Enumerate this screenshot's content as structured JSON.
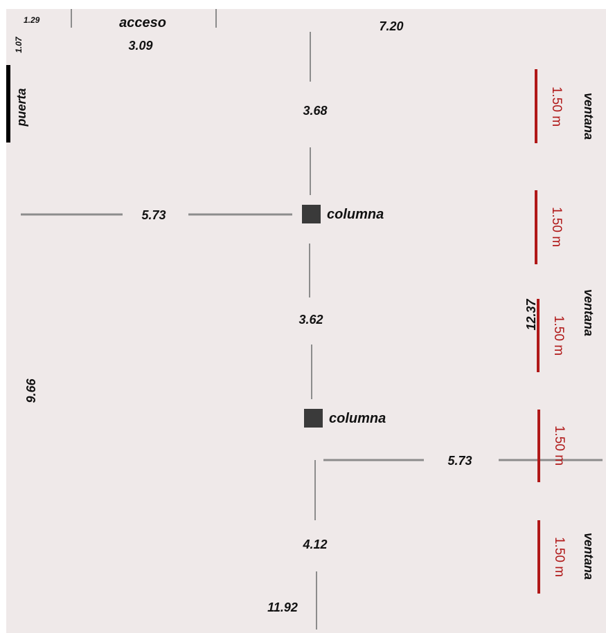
{
  "colors": {
    "background": "#efe9e9",
    "dimension_line": "#8c8c8c",
    "window_line": "#b01818",
    "door_line": "#000000",
    "column_fill": "#3a3a3a",
    "window_text": "#b01818",
    "label_text": "#111111"
  },
  "labels": {
    "acceso": "acceso",
    "puerta": "puerta",
    "columna_1": "columna",
    "columna_2": "columna",
    "ventana_1": "ventana",
    "ventana_2": "ventana",
    "ventana_3": "ventana"
  },
  "dimensions": {
    "d_1_29": "1.29",
    "d_1_07": "1.07",
    "d_3_09": "3.09",
    "d_7_20": "7.20",
    "d_3_68": "3.68",
    "d_5_73_a": "5.73",
    "d_3_62": "3.62",
    "d_9_66": "9.66",
    "d_12_37": "12.37",
    "d_5_73_b": "5.73",
    "d_4_12": "4.12",
    "d_11_92": "11.92"
  },
  "windows": [
    "1.50 m",
    "1.50 m",
    "1.50 m",
    "1.50 m",
    "1.50 m"
  ]
}
